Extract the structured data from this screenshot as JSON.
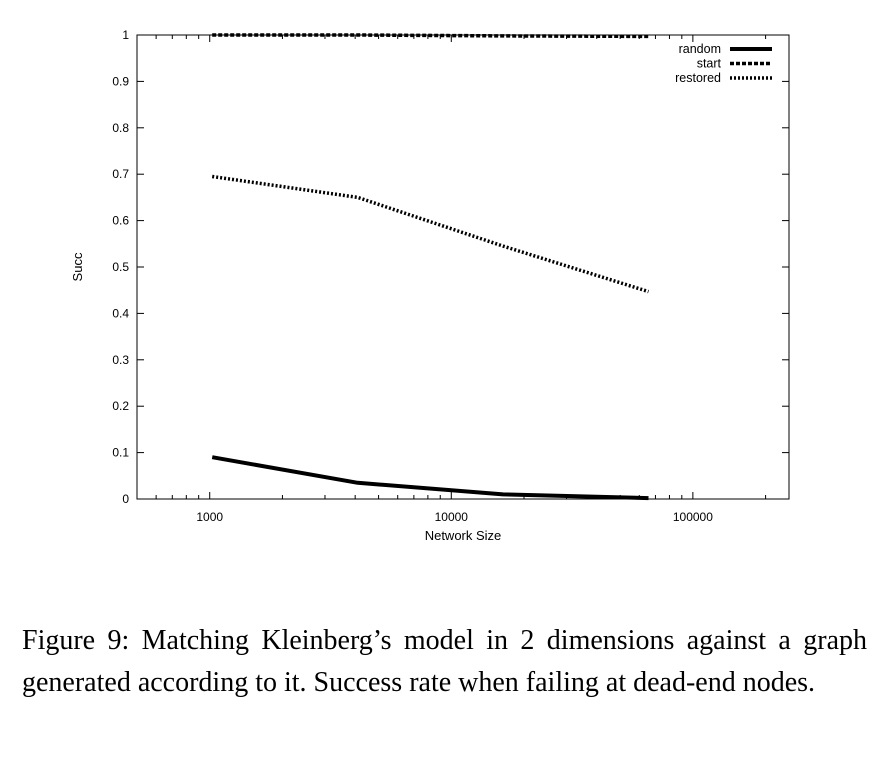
{
  "chart_data": {
    "type": "line",
    "xlabel": "Network Size",
    "ylabel": "Succ",
    "xscale": "log",
    "xlim": [
      500,
      250000
    ],
    "ylim": [
      0,
      1
    ],
    "xticks": [
      {
        "value": 1000,
        "label": "1000"
      },
      {
        "value": 10000,
        "label": "10000"
      },
      {
        "value": 100000,
        "label": "100000"
      }
    ],
    "yticks": [
      {
        "value": 0,
        "label": "0"
      },
      {
        "value": 0.1,
        "label": "0.1"
      },
      {
        "value": 0.2,
        "label": "0.2"
      },
      {
        "value": 0.3,
        "label": "0.3"
      },
      {
        "value": 0.4,
        "label": "0.4"
      },
      {
        "value": 0.5,
        "label": "0.5"
      },
      {
        "value": 0.6,
        "label": "0.6"
      },
      {
        "value": 0.7,
        "label": "0.7"
      },
      {
        "value": 0.8,
        "label": "0.8"
      },
      {
        "value": 0.9,
        "label": "0.9"
      },
      {
        "value": 1,
        "label": "1"
      }
    ],
    "grid": false,
    "legend_position": "top-right",
    "series": [
      {
        "name": "random",
        "style": "solid",
        "x": [
          1024,
          4096,
          16384,
          65536
        ],
        "values": [
          0.09,
          0.035,
          0.01,
          0.002
        ]
      },
      {
        "name": "start",
        "style": "dashed",
        "x": [
          1024,
          4096,
          16384,
          65536
        ],
        "values": [
          1.0,
          1.0,
          0.998,
          0.997
        ]
      },
      {
        "name": "restored",
        "style": "dotted",
        "x": [
          1024,
          4096,
          16384,
          65536
        ],
        "values": [
          0.695,
          0.65,
          0.545,
          0.447
        ]
      }
    ]
  },
  "caption": "Figure 9: Matching Kleinberg’s model in 2 dimensions against a graph generated according to it. Success rate when failing at dead-end nodes."
}
